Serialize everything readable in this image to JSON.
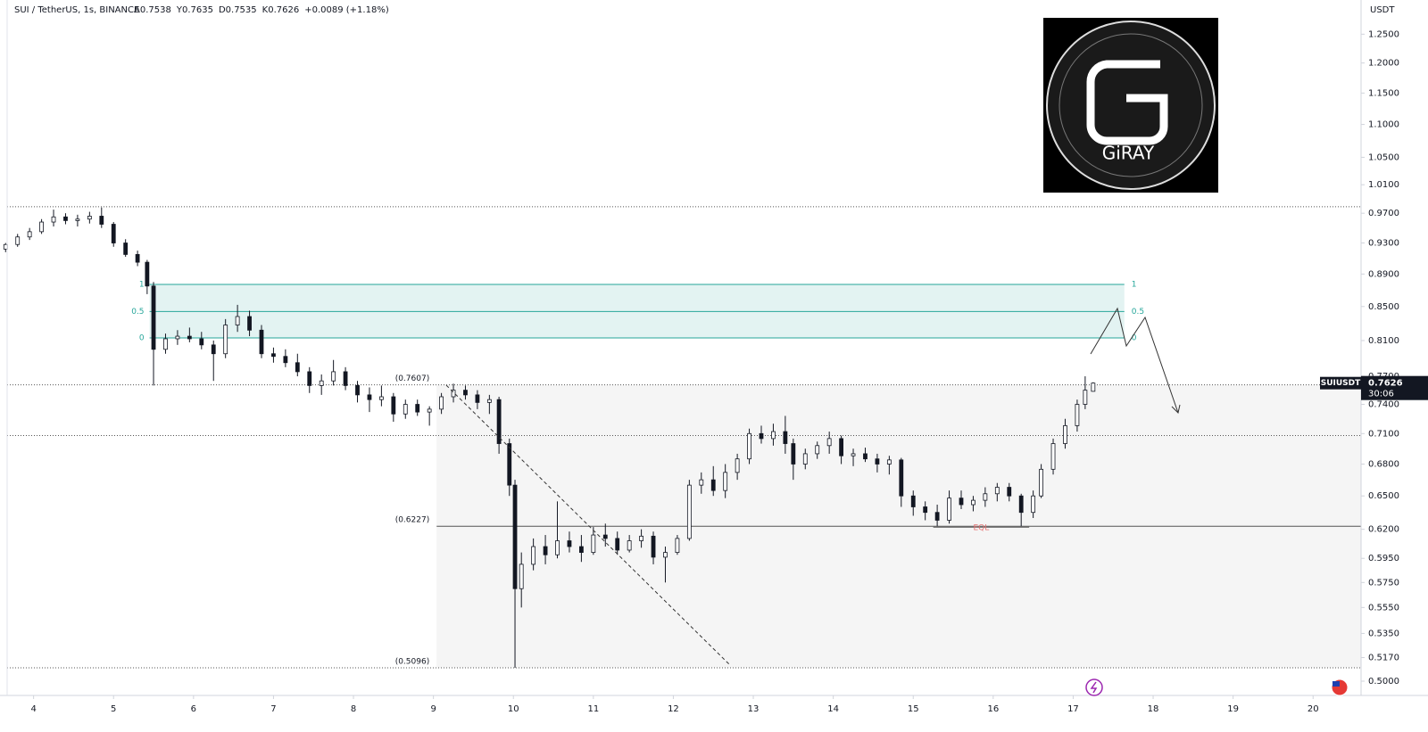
{
  "chart_data": {
    "type": "candlestick",
    "title": "SUI / TetherUS, 1s, BINANCE",
    "ohlc": [
      "A0.7538",
      "Y0.7635",
      "D0.7535",
      "K0.7626",
      "+0.0089 (+1.18%)"
    ],
    "y_axis_label": "USDT",
    "log_scale": true,
    "xlim": [
      3.58,
      20.6
    ],
    "xticks": [
      4,
      5,
      6,
      7,
      8,
      9,
      10,
      11,
      12,
      13,
      14,
      15,
      16,
      17,
      18,
      19,
      20
    ],
    "ylim": [
      0.49,
      1.312
    ],
    "yticks": [
      {
        "value": 1.25,
        "label": "1.2500"
      },
      {
        "value": 1.2,
        "label": "1.2000"
      },
      {
        "value": 1.15,
        "label": "1.1500"
      },
      {
        "value": 1.1,
        "label": "1.1000"
      },
      {
        "value": 1.05,
        "label": "1.0500"
      },
      {
        "value": 1.01,
        "label": "1.0100"
      },
      {
        "value": 0.97,
        "label": "0.9700"
      },
      {
        "value": 0.93,
        "label": "0.9300"
      },
      {
        "value": 0.89,
        "label": "0.8900"
      },
      {
        "value": 0.85,
        "label": "0.8500"
      },
      {
        "value": 0.81,
        "label": "0.8100"
      },
      {
        "value": 0.77,
        "label": "0.7700"
      },
      {
        "value": 0.74,
        "label": "0.7400"
      },
      {
        "value": 0.71,
        "label": "0.7100"
      },
      {
        "value": 0.68,
        "label": "0.6800"
      },
      {
        "value": 0.65,
        "label": "0.6500"
      },
      {
        "value": 0.62,
        "label": "0.6200"
      },
      {
        "value": 0.595,
        "label": "0.5950"
      },
      {
        "value": 0.575,
        "label": "0.5750"
      },
      {
        "value": 0.555,
        "label": "0.5550"
      },
      {
        "value": 0.535,
        "label": "0.5350"
      },
      {
        "value": 0.517,
        "label": "0.5170"
      },
      {
        "value": 0.5,
        "label": "0.5000"
      }
    ],
    "up_color": "#ffffff",
    "down_color": "#131722",
    "candles": {
      "x": [
        3.65,
        3.8,
        3.95,
        4.1,
        4.25,
        4.4,
        4.55,
        4.7,
        4.85,
        5.0,
        5.15,
        5.3,
        5.42,
        5.5,
        5.65,
        5.8,
        5.95,
        6.1,
        6.25,
        6.4,
        6.55,
        6.7,
        6.85,
        7.0,
        7.15,
        7.3,
        7.45,
        7.6,
        7.75,
        7.9,
        8.05,
        8.2,
        8.35,
        8.5,
        8.65,
        8.8,
        8.95,
        9.1,
        9.25,
        9.4,
        9.55,
        9.7,
        9.82,
        9.95,
        10.02,
        10.1,
        10.25,
        10.4,
        10.55,
        10.7,
        10.85,
        11.0,
        11.15,
        11.3,
        11.45,
        11.6,
        11.75,
        11.9,
        12.05,
        12.2,
        12.35,
        12.5,
        12.65,
        12.8,
        12.95,
        13.1,
        13.25,
        13.4,
        13.5,
        13.65,
        13.8,
        13.95,
        14.1,
        14.25,
        14.4,
        14.55,
        14.7,
        14.85,
        15.0,
        15.15,
        15.3,
        15.45,
        15.6,
        15.75,
        15.9,
        16.05,
        16.2,
        16.35,
        16.5,
        16.6,
        16.75,
        16.9,
        17.05,
        17.15,
        17.25
      ],
      "open": [
        0.922,
        0.928,
        0.938,
        0.945,
        0.958,
        0.965,
        0.96,
        0.962,
        0.966,
        0.955,
        0.93,
        0.915,
        0.905,
        0.875,
        0.8,
        0.812,
        0.815,
        0.812,
        0.805,
        0.795,
        0.828,
        0.838,
        0.822,
        0.795,
        0.792,
        0.785,
        0.775,
        0.76,
        0.765,
        0.775,
        0.76,
        0.75,
        0.745,
        0.748,
        0.73,
        0.74,
        0.732,
        0.735,
        0.748,
        0.755,
        0.75,
        0.742,
        0.745,
        0.7,
        0.66,
        0.57,
        0.59,
        0.605,
        0.598,
        0.61,
        0.605,
        0.6,
        0.615,
        0.612,
        0.602,
        0.61,
        0.614,
        0.596,
        0.6,
        0.612,
        0.66,
        0.665,
        0.655,
        0.672,
        0.685,
        0.71,
        0.705,
        0.712,
        0.7,
        0.68,
        0.69,
        0.698,
        0.705,
        0.688,
        0.69,
        0.685,
        0.68,
        0.684,
        0.65,
        0.64,
        0.635,
        0.628,
        0.648,
        0.642,
        0.646,
        0.652,
        0.658,
        0.65,
        0.635,
        0.65,
        0.675,
        0.7,
        0.718,
        0.74,
        0.7538
      ],
      "high": [
        0.93,
        0.942,
        0.95,
        0.962,
        0.975,
        0.97,
        0.968,
        0.972,
        0.978,
        0.958,
        0.935,
        0.92,
        0.908,
        0.88,
        0.818,
        0.822,
        0.825,
        0.82,
        0.81,
        0.835,
        0.852,
        0.845,
        0.828,
        0.802,
        0.8,
        0.795,
        0.78,
        0.772,
        0.788,
        0.78,
        0.765,
        0.758,
        0.76,
        0.752,
        0.745,
        0.745,
        0.738,
        0.752,
        0.762,
        0.76,
        0.755,
        0.75,
        0.748,
        0.705,
        0.665,
        0.6,
        0.612,
        0.615,
        0.645,
        0.618,
        0.615,
        0.622,
        0.625,
        0.618,
        0.615,
        0.62,
        0.618,
        0.605,
        0.615,
        0.665,
        0.672,
        0.678,
        0.68,
        0.69,
        0.715,
        0.718,
        0.72,
        0.728,
        0.705,
        0.695,
        0.702,
        0.712,
        0.708,
        0.695,
        0.696,
        0.69,
        0.688,
        0.686,
        0.655,
        0.645,
        0.642,
        0.655,
        0.655,
        0.65,
        0.658,
        0.662,
        0.662,
        0.652,
        0.655,
        0.68,
        0.705,
        0.725,
        0.745,
        0.77,
        0.7635
      ],
      "low": [
        0.918,
        0.925,
        0.934,
        0.942,
        0.952,
        0.955,
        0.952,
        0.956,
        0.95,
        0.925,
        0.912,
        0.9,
        0.865,
        0.76,
        0.795,
        0.805,
        0.808,
        0.8,
        0.765,
        0.79,
        0.82,
        0.815,
        0.79,
        0.785,
        0.78,
        0.77,
        0.752,
        0.75,
        0.76,
        0.755,
        0.742,
        0.732,
        0.738,
        0.722,
        0.725,
        0.728,
        0.718,
        0.73,
        0.742,
        0.745,
        0.735,
        0.73,
        0.69,
        0.65,
        0.5096,
        0.555,
        0.585,
        0.59,
        0.595,
        0.6,
        0.592,
        0.598,
        0.605,
        0.598,
        0.6,
        0.604,
        0.59,
        0.575,
        0.598,
        0.61,
        0.652,
        0.65,
        0.648,
        0.665,
        0.68,
        0.7,
        0.698,
        0.69,
        0.665,
        0.675,
        0.685,
        0.69,
        0.68,
        0.678,
        0.682,
        0.672,
        0.67,
        0.64,
        0.632,
        0.628,
        0.6227,
        0.625,
        0.638,
        0.636,
        0.64,
        0.645,
        0.645,
        0.6227,
        0.63,
        0.648,
        0.67,
        0.695,
        0.712,
        0.735,
        0.7535
      ],
      "close": [
        0.928,
        0.938,
        0.945,
        0.958,
        0.965,
        0.96,
        0.962,
        0.966,
        0.955,
        0.93,
        0.915,
        0.905,
        0.875,
        0.8,
        0.812,
        0.815,
        0.812,
        0.805,
        0.795,
        0.828,
        0.838,
        0.822,
        0.795,
        0.792,
        0.785,
        0.775,
        0.76,
        0.765,
        0.775,
        0.76,
        0.75,
        0.745,
        0.748,
        0.73,
        0.74,
        0.732,
        0.735,
        0.748,
        0.755,
        0.75,
        0.742,
        0.745,
        0.7,
        0.66,
        0.57,
        0.59,
        0.605,
        0.598,
        0.61,
        0.605,
        0.6,
        0.615,
        0.612,
        0.602,
        0.61,
        0.614,
        0.596,
        0.6,
        0.612,
        0.66,
        0.665,
        0.655,
        0.672,
        0.685,
        0.71,
        0.705,
        0.712,
        0.7,
        0.68,
        0.69,
        0.698,
        0.705,
        0.688,
        0.69,
        0.685,
        0.68,
        0.684,
        0.65,
        0.64,
        0.635,
        0.628,
        0.648,
        0.642,
        0.646,
        0.652,
        0.658,
        0.65,
        0.635,
        0.65,
        0.675,
        0.7,
        0.718,
        0.74,
        0.755,
        0.7626
      ]
    },
    "dotted_lines": [
      0.979,
      0.7607,
      0.708,
      0.5096
    ],
    "range_box": {
      "x": [
        9.04,
        20.6
      ],
      "levels": [
        {
          "value": 0.7607,
          "label": "(0.7607)"
        },
        {
          "value": 0.6227,
          "label": "(0.6227)"
        },
        {
          "value": 0.5096,
          "label": "(0.5096)"
        }
      ]
    },
    "fib_zone": {
      "x": [
        5.45,
        17.64
      ],
      "levels": [
        {
          "value": 0.877,
          "label": "1"
        },
        {
          "value": 0.844,
          "label": "0.5"
        },
        {
          "value": 0.813,
          "label": "0"
        }
      ]
    },
    "eql": {
      "label": "EQL",
      "x": [
        15.25,
        16.45
      ],
      "value": 0.6227
    },
    "last_price": {
      "symbol": "SUIUSDT",
      "value": 0.7626,
      "label": "0.7626",
      "timer": "30:06"
    },
    "logo_text": "GiRAY"
  }
}
